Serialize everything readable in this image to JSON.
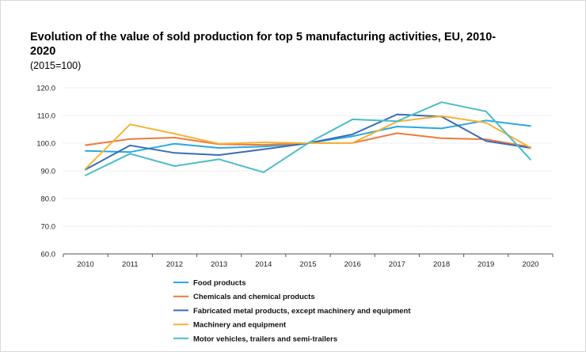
{
  "title": "Evolution of the value of sold production for top 5 manufacturing activities, EU, 2010-2020",
  "subtitle": "(2015=100)",
  "chart_data": {
    "type": "line",
    "title": "Evolution of the value of sold production for top 5 manufacturing activities, EU, 2010-2020",
    "subtitle": "(2015=100)",
    "xlabel": "",
    "ylabel": "",
    "ylim": [
      60,
      120
    ],
    "yticks": [
      60,
      70,
      80,
      90,
      100,
      110,
      120
    ],
    "ytick_labels": [
      "60.0",
      "70.0",
      "80.0",
      "90.0",
      "100.0",
      "110.0",
      "120.0"
    ],
    "grid": true,
    "legend_position": "bottom-left",
    "categories": [
      "2010",
      "2011",
      "2012",
      "2013",
      "2014",
      "2015",
      "2016",
      "2017",
      "2018",
      "2019",
      "2020"
    ],
    "series": [
      {
        "name": "Food products",
        "color": "#29a8e0",
        "values": [
          97.2,
          96.8,
          99.8,
          98.3,
          98.8,
          100.0,
          102.5,
          106.0,
          105.3,
          108.2,
          106.2
        ]
      },
      {
        "name": "Chemicals and chemical products",
        "color": "#ec7a3f",
        "values": [
          99.3,
          101.5,
          102.0,
          99.6,
          99.4,
          100.0,
          100.1,
          103.6,
          101.8,
          101.4,
          98.6
        ]
      },
      {
        "name": "Fabricated metal products, except machinery and equipment",
        "color": "#3b6cb4",
        "values": [
          90.5,
          99.2,
          96.5,
          95.7,
          97.8,
          100.0,
          103.2,
          110.4,
          109.6,
          100.8,
          98.3
        ]
      },
      {
        "name": "Machinery and equipment",
        "color": "#f5b335",
        "values": [
          90.8,
          106.8,
          103.4,
          99.8,
          100.3,
          100.0,
          100.1,
          107.8,
          109.8,
          107.4,
          98.4
        ]
      },
      {
        "name": "Motor vehicles, trailers and semi-trailers",
        "color": "#4bbcc8",
        "values": [
          88.4,
          96.2,
          91.7,
          94.2,
          89.5,
          100.0,
          108.6,
          107.9,
          114.8,
          111.5,
          94.1
        ]
      }
    ]
  }
}
